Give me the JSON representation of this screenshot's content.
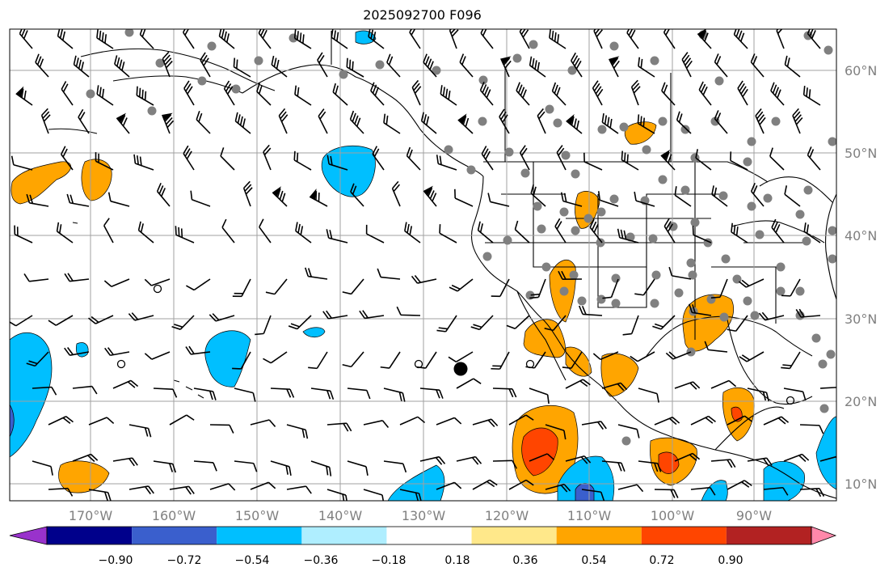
{
  "title": "2025092700 F096",
  "map": {
    "lon_labels": [
      "170°W",
      "160°W",
      "150°W",
      "140°W",
      "130°W",
      "120°W",
      "110°W",
      "100°W",
      "90°W"
    ],
    "lat_labels": [
      "60°N",
      "50°N",
      "40°N",
      "30°N",
      "20°N",
      "10°N"
    ]
  },
  "colorbar": {
    "labels": [
      "−0.90",
      "−0.72",
      "−0.54",
      "−0.36",
      "−0.18",
      "0.18",
      "0.36",
      "0.54",
      "0.72",
      "0.90"
    ],
    "colors": [
      "#9932cc",
      "#00008b",
      "#3a5fcd",
      "#00bfff",
      "#afeeff",
      "#ffffff",
      "#ffe88a",
      "#ffa500",
      "#ff4500",
      "#b22222",
      "#ff88aa"
    ]
  },
  "colors": {
    "grid": "#a0a0a0",
    "coast": "#000000",
    "stations": "#808080",
    "pos_light": "#ffa500",
    "pos_strong": "#ff4500",
    "neg_light": "#00bfff",
    "neg_strong": "#3a5fcd"
  }
}
